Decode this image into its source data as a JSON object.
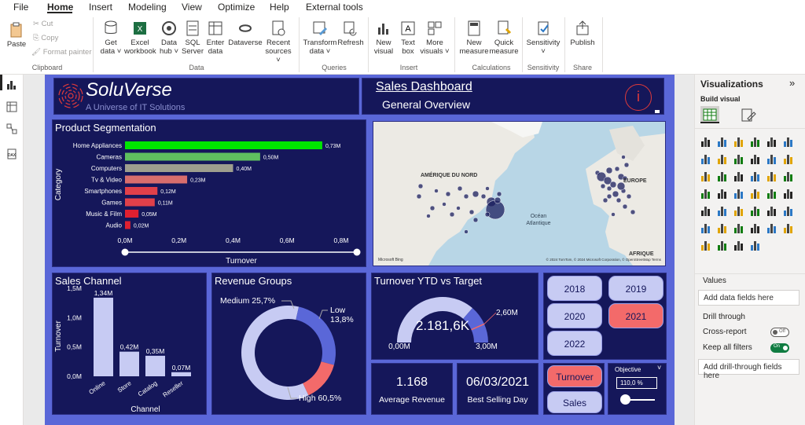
{
  "menu": [
    "File",
    "Home",
    "Insert",
    "Modeling",
    "View",
    "Optimize",
    "Help",
    "External tools"
  ],
  "ribbon": {
    "paste": "Paste",
    "cut": "Cut",
    "copy": "Copy",
    "format_painter": "Format painter",
    "clipboard": "Clipboard",
    "get_data_1": "Get",
    "get_data_2": "data",
    "excel_1": "Excel",
    "excel_2": "workbook",
    "hub_1": "Data",
    "hub_2": "hub",
    "sql_1": "SQL",
    "sql_2": "Server",
    "enter_1": "Enter",
    "enter_2": "data",
    "dataverse": "Dataverse",
    "recent_1": "Recent",
    "recent_2": "sources",
    "data_group": "Data",
    "transform_1": "Transform",
    "transform_2": "data",
    "refresh": "Refresh",
    "queries_group": "Queries",
    "newvisual_1": "New",
    "newvisual_2": "visual",
    "textbox_1": "Text",
    "textbox_2": "box",
    "more_1": "More",
    "more_2": "visuals",
    "insert_group": "Insert",
    "newmeasure_1": "New",
    "newmeasure_2": "measure",
    "quick_1": "Quick",
    "quick_2": "measure",
    "calc_group": "Calculations",
    "sensitivity": "Sensitivity",
    "sensitivity_group": "Sensitivity",
    "publish": "Publish",
    "share_group": "Share"
  },
  "header": {
    "brand": "SoluVerse",
    "tagline": "A Universe of IT Solutions",
    "title": "Sales Dashboard",
    "subtitle": "General Overview",
    "info": "i"
  },
  "segmentation": {
    "title": "Product Segmentation",
    "ylabel": "Category",
    "xlabel": "Turnover",
    "ticks": [
      "0,0M",
      "0,2M",
      "0,4M",
      "0,6M",
      "0,8M"
    ]
  },
  "map": {
    "label_na": "AMÉRIQUE DU NORD",
    "label_eu": "EUROPE",
    "label_af": "AFRIQUE",
    "label_ocean_1": "Océan",
    "label_ocean_2": "Atlantique",
    "bing": "Microsoft Bing",
    "copyright": "© 2024 TomTom, © 2024 Microsoft Corporation, © OpenStreetMap Terms"
  },
  "channel": {
    "title": "Sales Channel",
    "ylabel": "Turnover",
    "xlabel": "Channel",
    "ticks": [
      "1,5M",
      "1,0M",
      "0,5M",
      "0,0M"
    ]
  },
  "revenue": {
    "title": "Revenue Groups",
    "medium": "Medium 25,7%",
    "low_1": "Low",
    "low_2": "13,8%",
    "high": "High 60,5%"
  },
  "gauge": {
    "title": "Turnover YTD vs Target",
    "value": "2.181,6K",
    "min": "0,00M",
    "max": "3,00M",
    "target": "2,60M"
  },
  "years": [
    "2018",
    "2019",
    "2020",
    "2021",
    "2022"
  ],
  "cards": {
    "avg_value": "1.168",
    "avg_label": "Average Revenue",
    "day_value": "06/03/2021",
    "day_label": "Best Selling Day"
  },
  "toggles": {
    "turnover": "Turnover",
    "sales": "Sales"
  },
  "objective": {
    "label": "Objective",
    "value": "110,0 %"
  },
  "viz": {
    "title": "Visualizations",
    "build": "Build visual",
    "values": "Values",
    "add_data": "Add data fields here",
    "drill": "Drill through",
    "cross": "Cross-report",
    "cross_state": "Off",
    "keep": "Keep all filters",
    "keep_state": "On",
    "add_drill": "Add drill-through fields here"
  },
  "chart_data": [
    {
      "type": "bar",
      "title": "Product Segmentation",
      "xlabel": "Turnover",
      "ylabel": "Category",
      "xlim": [
        0,
        0.8
      ],
      "categories": [
        "Home Appliances",
        "Cameras",
        "Computers",
        "Tv & Video",
        "Smartphones",
        "Games",
        "Music & Film",
        "Audio"
      ],
      "values": [
        0.73,
        0.5,
        0.4,
        0.23,
        0.12,
        0.11,
        0.05,
        0.02
      ],
      "labels": [
        "0,73M",
        "0,50M",
        "0,40M",
        "0,23M",
        "0,12M",
        "0,11M",
        "0,05M",
        "0,02M"
      ],
      "colors": [
        "#00e600",
        "#5fbf5f",
        "#9e9e8e",
        "#d86d6d",
        "#e0404a",
        "#e0404a",
        "#e02030",
        "#e02030"
      ]
    },
    {
      "type": "bar",
      "title": "Sales Channel",
      "xlabel": "Channel",
      "ylabel": "Turnover",
      "ylim": [
        0,
        1.5
      ],
      "categories": [
        "Online",
        "Store",
        "Catalog",
        "Reseller"
      ],
      "values": [
        1.34,
        0.42,
        0.35,
        0.07
      ],
      "labels": [
        "1,34M",
        "0,42M",
        "0,35M",
        "0,07M"
      ]
    },
    {
      "type": "pie",
      "title": "Revenue Groups",
      "categories": [
        "High",
        "Medium",
        "Low"
      ],
      "values": [
        60.5,
        25.7,
        13.8
      ],
      "colors": [
        "#c7cbf3",
        "#5a67d8",
        "#f36a6a"
      ]
    },
    {
      "type": "gauge",
      "title": "Turnover YTD vs Target",
      "value": 2.1816,
      "min": 0,
      "max": 3.0,
      "target": 2.6
    }
  ]
}
